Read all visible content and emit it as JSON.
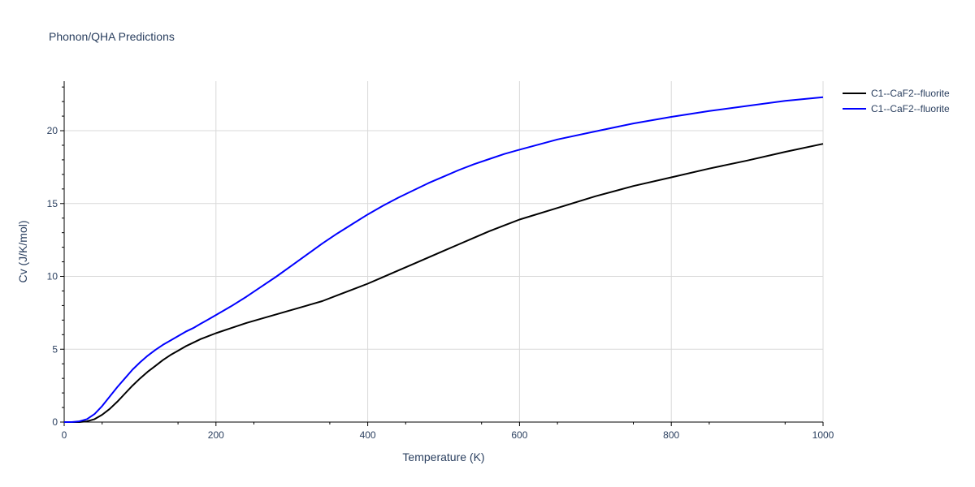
{
  "chart_data": {
    "type": "line",
    "title": "Phonon/QHA Predictions",
    "xlabel": "Temperature (K)",
    "ylabel": "Cv (J/K/mol)",
    "xlim": [
      0,
      1000
    ],
    "ylim": [
      0,
      23.4
    ],
    "x_ticks": [
      0,
      200,
      400,
      600,
      800,
      1000
    ],
    "y_ticks": [
      0,
      5,
      10,
      15,
      20
    ],
    "grid": true,
    "legend_position": "top-right",
    "series": [
      {
        "name": "C1--CaF2--fluorite",
        "color": "#000000",
        "x": [
          0,
          10,
          20,
          30,
          40,
          50,
          60,
          70,
          80,
          90,
          100,
          110,
          120,
          130,
          140,
          150,
          160,
          170,
          180,
          190,
          200,
          220,
          240,
          260,
          280,
          300,
          320,
          340,
          360,
          380,
          400,
          420,
          440,
          460,
          480,
          500,
          520,
          540,
          560,
          580,
          600,
          650,
          700,
          750,
          800,
          850,
          900,
          950,
          1000
        ],
        "y": [
          0,
          0,
          0,
          0.05,
          0.2,
          0.5,
          0.9,
          1.4,
          1.95,
          2.5,
          3.0,
          3.45,
          3.85,
          4.25,
          4.6,
          4.9,
          5.2,
          5.45,
          5.7,
          5.9,
          6.1,
          6.45,
          6.8,
          7.1,
          7.4,
          7.7,
          8.0,
          8.3,
          8.7,
          9.1,
          9.5,
          9.95,
          10.4,
          10.85,
          11.3,
          11.75,
          12.2,
          12.65,
          13.1,
          13.5,
          13.9,
          14.7,
          15.5,
          16.2,
          16.8,
          17.4,
          17.95,
          18.55,
          19.1
        ]
      },
      {
        "name": "C1--CaF2--fluorite",
        "color": "#0000ff",
        "x": [
          0,
          10,
          20,
          30,
          40,
          50,
          60,
          70,
          80,
          90,
          100,
          110,
          120,
          130,
          140,
          150,
          160,
          170,
          180,
          190,
          200,
          220,
          240,
          260,
          280,
          300,
          320,
          340,
          360,
          380,
          400,
          420,
          440,
          460,
          480,
          500,
          520,
          540,
          560,
          580,
          600,
          650,
          700,
          750,
          800,
          850,
          900,
          950,
          1000
        ],
        "y": [
          0,
          0,
          0.05,
          0.2,
          0.55,
          1.1,
          1.75,
          2.4,
          3.0,
          3.6,
          4.1,
          4.55,
          4.95,
          5.3,
          5.6,
          5.9,
          6.2,
          6.45,
          6.75,
          7.05,
          7.35,
          7.95,
          8.6,
          9.3,
          10.0,
          10.75,
          11.5,
          12.25,
          12.95,
          13.6,
          14.25,
          14.85,
          15.4,
          15.9,
          16.4,
          16.85,
          17.3,
          17.7,
          18.05,
          18.4,
          18.7,
          19.4,
          19.95,
          20.5,
          20.95,
          21.35,
          21.7,
          22.05,
          22.3
        ]
      }
    ]
  }
}
